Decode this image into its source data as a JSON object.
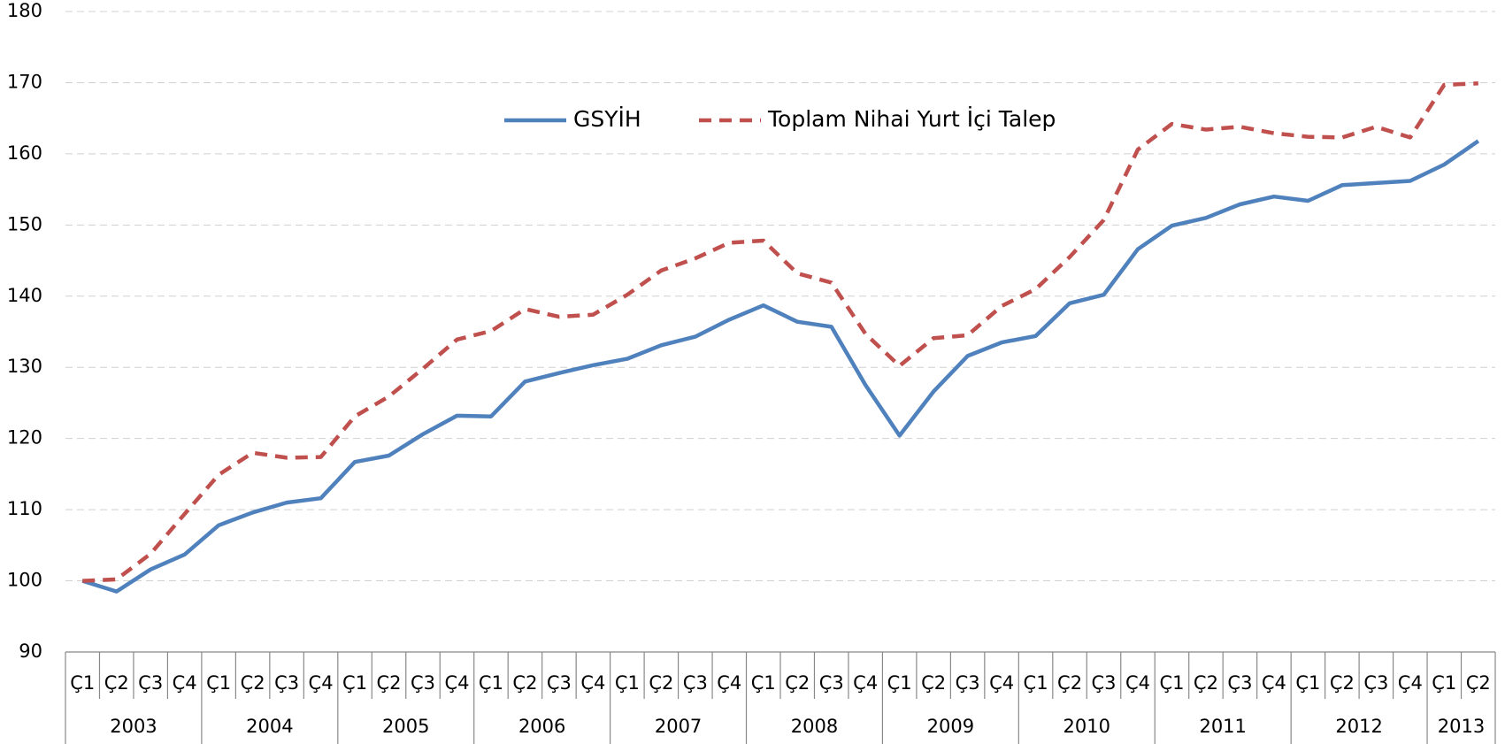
{
  "chart_data": {
    "type": "line",
    "categories": [
      "Ç1",
      "Ç2",
      "Ç3",
      "Ç4",
      "Ç1",
      "Ç2",
      "Ç3",
      "Ç4",
      "Ç1",
      "Ç2",
      "Ç3",
      "Ç4",
      "Ç1",
      "Ç2",
      "Ç3",
      "Ç4",
      "Ç1",
      "Ç2",
      "Ç3",
      "Ç4",
      "Ç1",
      "Ç2",
      "Ç3",
      "Ç4",
      "Ç1",
      "Ç2",
      "Ç3",
      "Ç4",
      "Ç1",
      "Ç2",
      "Ç3",
      "Ç4",
      "Ç1",
      "Ç2",
      "Ç3",
      "Ç4",
      "Ç1",
      "Ç2",
      "Ç3",
      "Ç4",
      "Ç1",
      "Ç2"
    ],
    "groups": [
      {
        "label": "2003",
        "size": 4
      },
      {
        "label": "2004",
        "size": 4
      },
      {
        "label": "2005",
        "size": 4
      },
      {
        "label": "2006",
        "size": 4
      },
      {
        "label": "2007",
        "size": 4
      },
      {
        "label": "2008",
        "size": 4
      },
      {
        "label": "2009",
        "size": 4
      },
      {
        "label": "2010",
        "size": 4
      },
      {
        "label": "2011",
        "size": 4
      },
      {
        "label": "2012",
        "size": 4
      },
      {
        "label": "2013",
        "size": 2
      }
    ],
    "series": [
      {
        "name": "GSYİH",
        "color": "#4f81bd",
        "dashed": false,
        "values": [
          100,
          98.5,
          101.6,
          103.7,
          107.8,
          109.6,
          111.0,
          111.6,
          116.7,
          117.6,
          120.6,
          123.2,
          123.1,
          128.0,
          129.2,
          130.3,
          131.2,
          133.1,
          134.3,
          136.7,
          138.7,
          136.4,
          135.7,
          127.5,
          120.4,
          126.6,
          131.6,
          133.5,
          134.4,
          139.0,
          140.2,
          146.6,
          149.9,
          151.0,
          152.9,
          154.0,
          153.4,
          155.6,
          155.9,
          156.2,
          158.5,
          161.8
        ]
      },
      {
        "name": "Toplam Nihai Yurt İçi Talep",
        "color": "#c0504d",
        "dashed": true,
        "values": [
          100,
          100.2,
          103.8,
          109.4,
          114.9,
          118.0,
          117.3,
          117.4,
          123.1,
          125.9,
          129.8,
          133.9,
          135.1,
          138.2,
          137.1,
          137.4,
          140.2,
          143.6,
          145.3,
          147.5,
          147.8,
          143.2,
          141.9,
          134.7,
          130.2,
          134.1,
          134.5,
          138.6,
          141.0,
          145.5,
          150.7,
          160.6,
          164.2,
          163.4,
          163.8,
          162.9,
          162.4,
          162.3,
          163.8,
          162.3,
          169.7,
          169.9
        ]
      }
    ],
    "ylim": [
      90,
      180
    ],
    "yticks": [
      90,
      100,
      110,
      120,
      130,
      140,
      150,
      160,
      170,
      180
    ],
    "grid": true,
    "legend": "top"
  }
}
